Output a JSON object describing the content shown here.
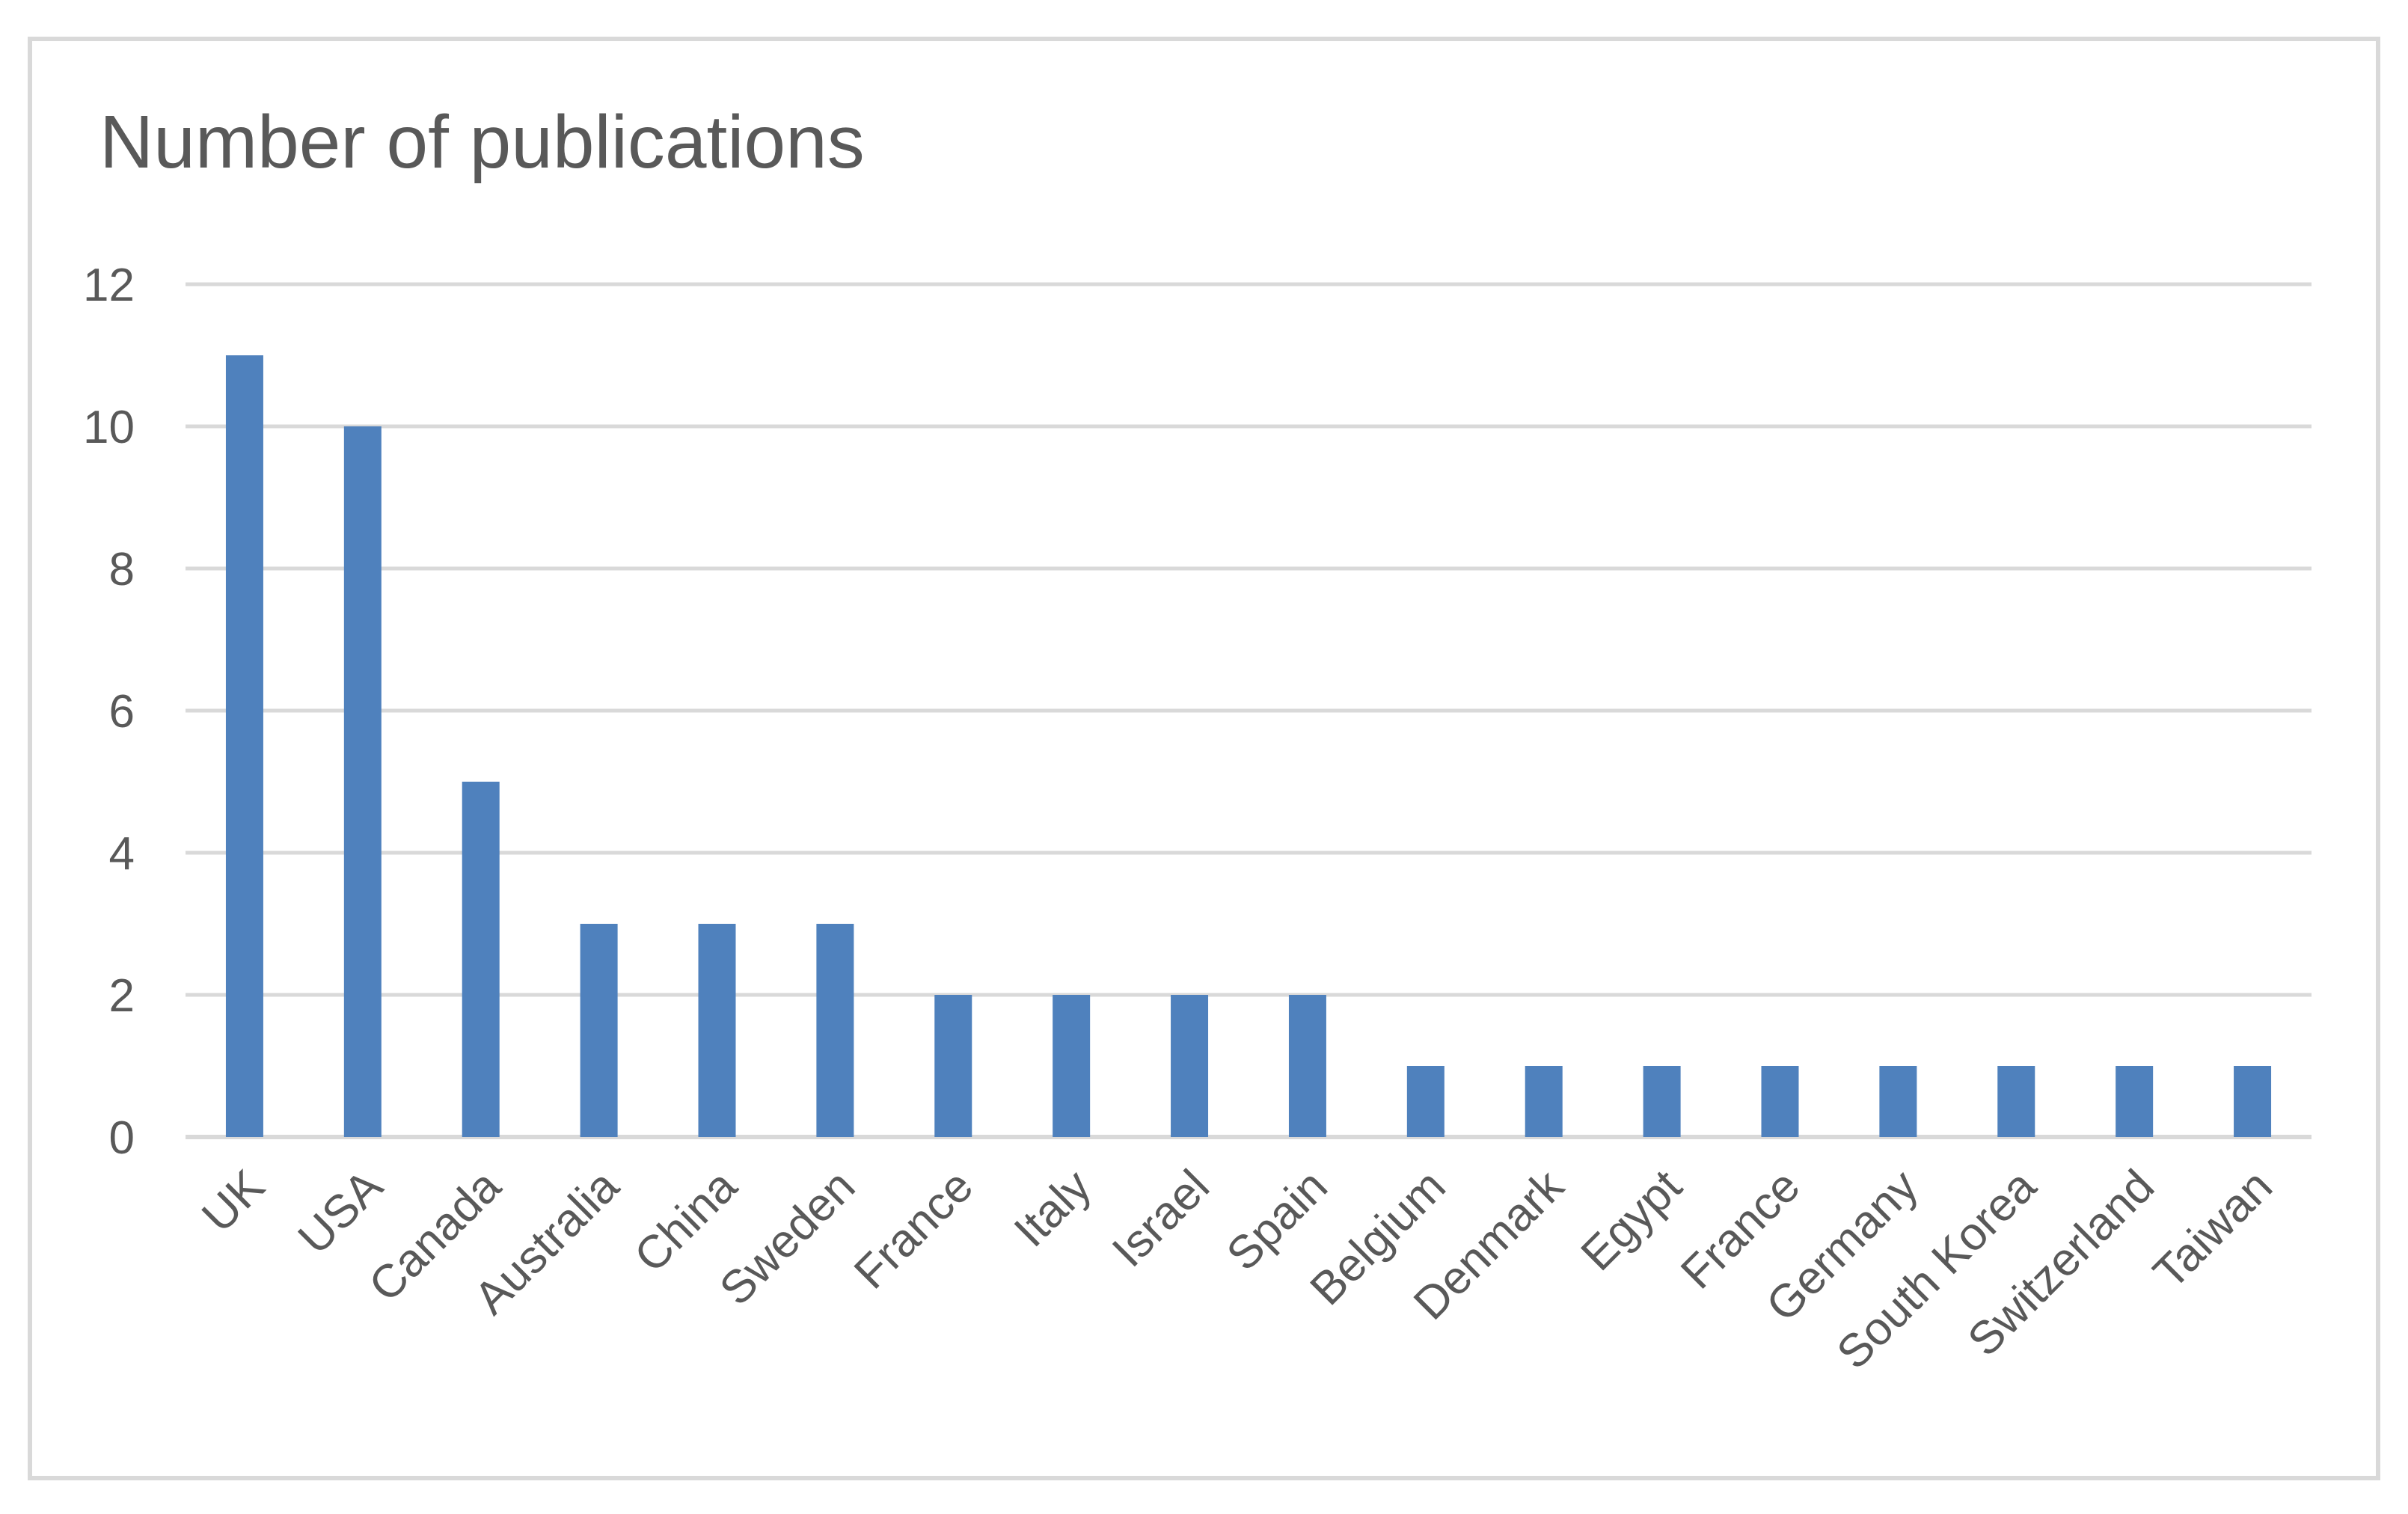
{
  "chart_data": {
    "type": "bar",
    "title": "Number of publications",
    "xlabel": "",
    "ylabel": "",
    "categories": [
      "UK",
      "USA",
      "Canada",
      "Australia",
      "China",
      "Sweden",
      "France",
      "Italy",
      "Israel",
      "Spain",
      "Belgium",
      "Denmark",
      "Egypt",
      "France",
      "Germany",
      "South Korea",
      "Switzerland",
      "Taiwan"
    ],
    "values": [
      11,
      10,
      5,
      3,
      3,
      3,
      2,
      2,
      2,
      2,
      1,
      1,
      1,
      1,
      1,
      1,
      1,
      1
    ],
    "ylim": [
      0,
      12
    ],
    "yticks": [
      0,
      2,
      4,
      6,
      8,
      10,
      12
    ],
    "grid": true,
    "legend": "none",
    "bar_color": "#4f81bd",
    "grid_color": "#d9d9d9"
  }
}
